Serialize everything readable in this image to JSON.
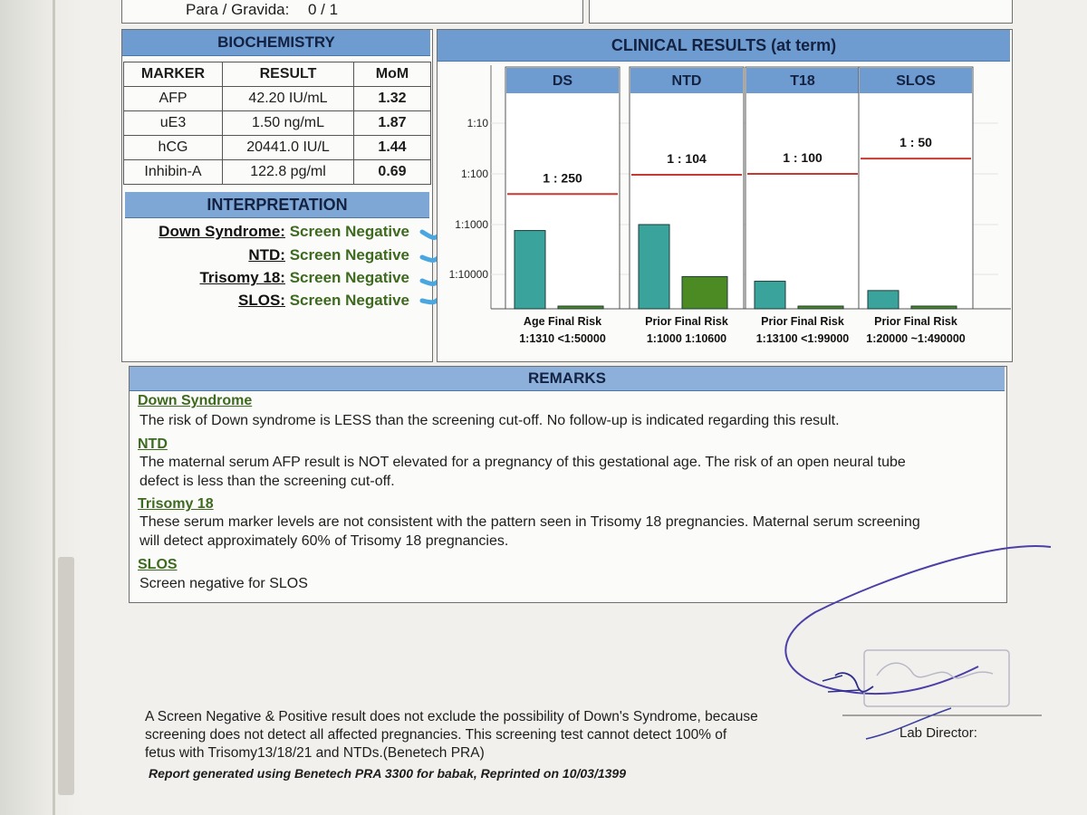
{
  "patient": {
    "para_gravida_label": "Para / Gravida:",
    "para_gravida_value": "0 / 1"
  },
  "biochemistry": {
    "title": "BIOCHEMISTRY",
    "headers": [
      "MARKER",
      "RESULT",
      "MoM"
    ],
    "rows": [
      [
        "AFP",
        "42.20 IU/mL",
        "1.32"
      ],
      [
        "uE3",
        "1.50 ng/mL",
        "1.87"
      ],
      [
        "hCG",
        "20441.0 IU/L",
        "1.44"
      ],
      [
        "Inhibin-A",
        "122.8 pg/ml",
        "0.69"
      ]
    ]
  },
  "interpretation": {
    "title": "INTERPRETATION",
    "items": [
      {
        "label": "Down Syndrome:",
        "value": "Screen Negative"
      },
      {
        "label": "NTD:",
        "value": "Screen Negative"
      },
      {
        "label": "Trisomy 18:",
        "value": "Screen Negative"
      },
      {
        "label": "SLOS:",
        "value": "Screen Negative"
      }
    ]
  },
  "clinical": {
    "title": "CLINICAL RESULTS (at term)"
  },
  "chart_data": {
    "type": "bar",
    "title": "CLINICAL RESULTS (at term)",
    "y_scale": "log-risk",
    "y_ticks": [
      "1:10",
      "1:100",
      "1:1000",
      "1:10000"
    ],
    "colors": {
      "prior": "#3aa39c",
      "final": "#4c8a24",
      "cutoff": "#c63a32"
    },
    "panels": [
      {
        "name": "DS",
        "cutoff_label": "1 : 250",
        "cutoff_denominator": 250,
        "bars": [
          {
            "label": "Age",
            "value": "1:1310",
            "denominator": 1310
          },
          {
            "label": "Final Risk",
            "value": "<1:50000",
            "denominator": 50000
          }
        ]
      },
      {
        "name": "NTD",
        "cutoff_label": "1 : 104",
        "cutoff_denominator": 104,
        "bars": [
          {
            "label": "Prior",
            "value": "1:1000",
            "denominator": 1000
          },
          {
            "label": "Final Risk",
            "value": "1:10600",
            "denominator": 10600
          }
        ]
      },
      {
        "name": "T18",
        "cutoff_label": "1 : 100",
        "cutoff_denominator": 100,
        "bars": [
          {
            "label": "Prior",
            "value": "1:13100",
            "denominator": 13100
          },
          {
            "label": "Final Risk",
            "value": "<1:99000",
            "denominator": 99000
          }
        ]
      },
      {
        "name": "SLOS",
        "cutoff_label": "1 : 50",
        "cutoff_denominator": 50,
        "bars": [
          {
            "label": "Prior",
            "value": "1:20000",
            "denominator": 20000
          },
          {
            "label": "Final Risk",
            "value": "~1:490000",
            "denominator": 490000
          }
        ]
      }
    ]
  },
  "remarks": {
    "title": "REMARKS",
    "items": [
      {
        "heading": "Down Syndrome",
        "lines": [
          "The risk of Down syndrome is LESS than the screening cut-off. No follow-up is indicated regarding this result."
        ]
      },
      {
        "heading": "NTD",
        "lines": [
          "The maternal serum AFP result is NOT elevated for a pregnancy of this gestational age.  The risk of an open neural tube",
          "defect is less than the screening cut-off."
        ]
      },
      {
        "heading": "Trisomy 18",
        "lines": [
          "These serum marker levels are not consistent with the pattern seen in Trisomy 18 pregnancies. Maternal serum screening",
          "will detect approximately 60% of Trisomy 18 pregnancies."
        ]
      },
      {
        "heading": "SLOS",
        "lines": [
          "Screen negative for SLOS"
        ]
      }
    ]
  },
  "footer": {
    "disclaimer_lines": [
      "A Screen Negative & Positive result does not exclude the possibility of Down's Syndrome, because",
      "screening does not detect all affected pregnancies. This screening test cannot detect 100% of",
      "fetus with Trisomy13/18/21 and NTDs.(Benetech PRA)"
    ],
    "generated": "Report generated using Benetech PRA 3300 for babak, Reprinted on 10/03/1399",
    "lab_director": "Lab Director:"
  }
}
